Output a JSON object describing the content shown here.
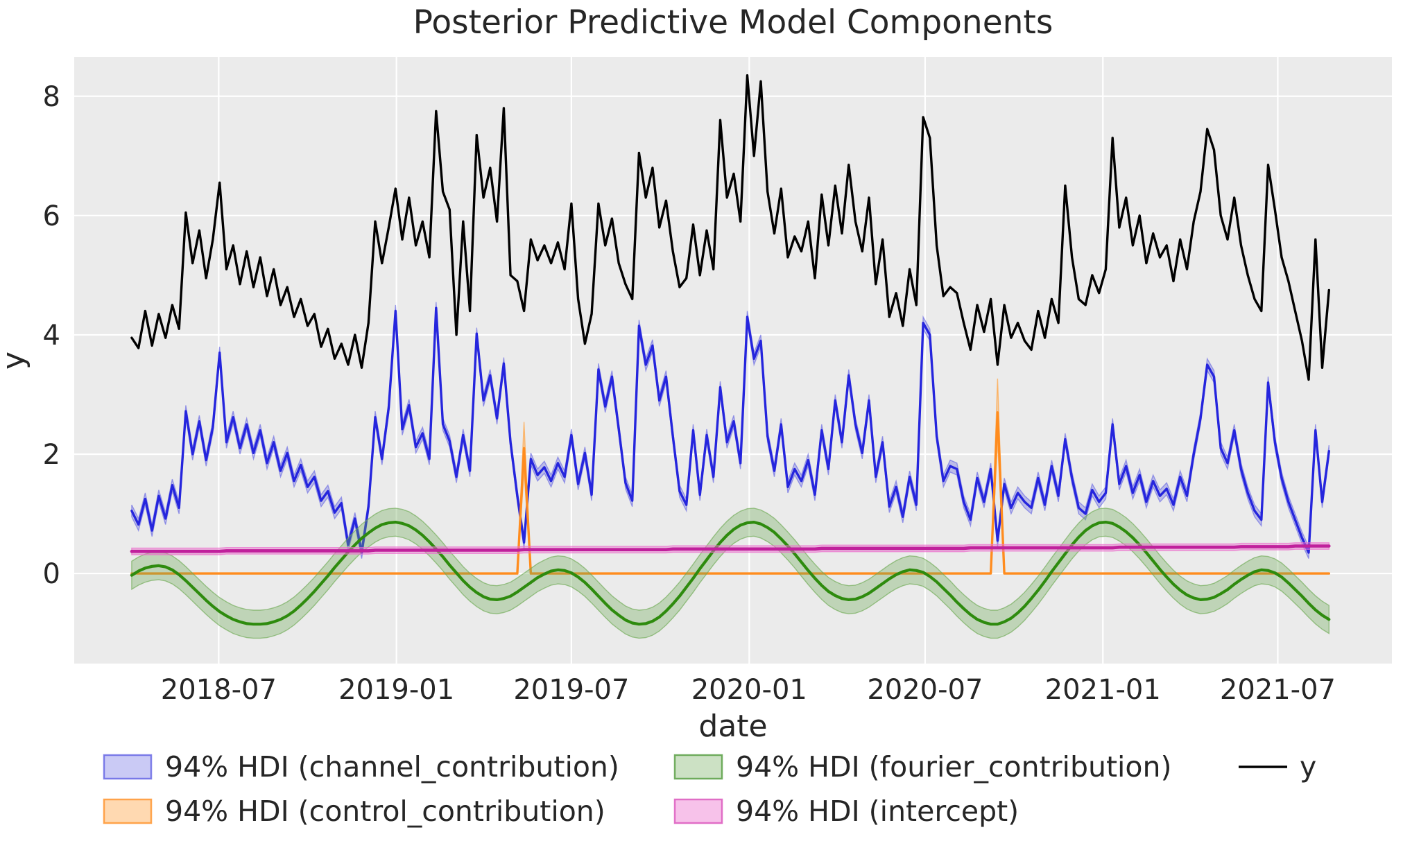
{
  "chart_data": {
    "type": "line",
    "title": "Posterior Predictive Model Components",
    "xlabel": "date",
    "ylabel": "y",
    "background": {
      "panel": "#ebebeb",
      "figure": "#ffffff",
      "grid": "#ffffff"
    },
    "x": {
      "start_date": "2018-04-02",
      "freq_days": 7,
      "n": 178
    },
    "xlim": [
      -8.5,
      186.3
    ],
    "ylim": [
      -1.51,
      8.66
    ],
    "xticks": [
      {
        "pos": 12.86,
        "label": "2018-07"
      },
      {
        "pos": 39.14,
        "label": "2019-01"
      },
      {
        "pos": 65.0,
        "label": "2019-07"
      },
      {
        "pos": 91.29,
        "label": "2020-01"
      },
      {
        "pos": 117.29,
        "label": "2020-07"
      },
      {
        "pos": 143.57,
        "label": "2021-01"
      },
      {
        "pos": 169.43,
        "label": "2021-07"
      }
    ],
    "yticks": [
      {
        "pos": 0,
        "label": "0"
      },
      {
        "pos": 2,
        "label": "2"
      },
      {
        "pos": 4,
        "label": "4"
      },
      {
        "pos": 6,
        "label": "6"
      },
      {
        "pos": 8,
        "label": "8"
      }
    ],
    "series": [
      {
        "name": "channel_contribution",
        "legend": "94% HDI (channel_contribution)",
        "color": "#2525dd",
        "band_fill": "rgba(90,90,225,0.32)",
        "band_edge": "rgba(90,90,225,0.55)",
        "line_width": 3.4,
        "band": {
          "mode": "halfwidth",
          "value": 0.1
        },
        "values": [
          1.05,
          0.82,
          1.25,
          0.72,
          1.3,
          0.92,
          1.48,
          1.1,
          2.72,
          2.0,
          2.55,
          1.9,
          2.45,
          3.7,
          2.2,
          2.62,
          2.1,
          2.5,
          2.02,
          2.4,
          1.85,
          2.2,
          1.72,
          2.02,
          1.55,
          1.82,
          1.45,
          1.62,
          1.22,
          1.38,
          1.02,
          1.18,
          0.48,
          0.92,
          0.35,
          1.12,
          2.62,
          1.92,
          2.78,
          4.4,
          2.42,
          2.82,
          2.12,
          2.35,
          1.92,
          4.45,
          2.5,
          2.22,
          1.62,
          2.32,
          1.72,
          4.02,
          2.9,
          3.32,
          2.6,
          3.52,
          2.2,
          1.3,
          0.52,
          1.92,
          1.65,
          1.78,
          1.55,
          1.85,
          1.62,
          2.32,
          1.5,
          2.02,
          1.32,
          3.42,
          2.8,
          3.3,
          2.42,
          1.52,
          1.22,
          4.15,
          3.5,
          3.82,
          2.9,
          3.3,
          2.3,
          1.38,
          1.15,
          2.4,
          1.32,
          2.32,
          1.62,
          3.12,
          2.2,
          2.55,
          1.85,
          4.3,
          3.6,
          3.9,
          2.3,
          1.72,
          2.5,
          1.45,
          1.75,
          1.55,
          1.9,
          1.32,
          2.4,
          1.75,
          2.9,
          2.2,
          3.32,
          2.5,
          2.02,
          2.9,
          1.62,
          2.2,
          1.12,
          1.45,
          0.95,
          1.62,
          1.15,
          4.2,
          4.0,
          2.3,
          1.55,
          1.8,
          1.75,
          1.2,
          0.9,
          1.6,
          1.2,
          1.75,
          0.55,
          1.5,
          1.1,
          1.35,
          1.2,
          1.1,
          1.6,
          1.15,
          1.8,
          1.3,
          2.25,
          1.6,
          1.1,
          1.0,
          1.4,
          1.2,
          1.35,
          2.5,
          1.5,
          1.8,
          1.35,
          1.65,
          1.2,
          1.55,
          1.3,
          1.42,
          1.15,
          1.62,
          1.3,
          2.0,
          2.6,
          3.5,
          3.3,
          2.1,
          1.85,
          2.4,
          1.75,
          1.35,
          1.05,
          0.9,
          3.2,
          2.2,
          1.6,
          1.2,
          0.9,
          0.6,
          0.35,
          2.4,
          1.2,
          2.05
        ]
      },
      {
        "name": "control_contribution",
        "legend": "94% HDI (control_contribution)",
        "color": "#ff8c1e",
        "band_fill": "rgba(255,165,70,0.42)",
        "band_edge": "rgba(255,165,70,0.7)",
        "line_width": 3.4,
        "band": {
          "mode": "scale",
          "lo": 0.82,
          "hi": 1.21
        },
        "base_value": 0,
        "spikes": {
          "58": 2.1,
          "128": 2.7
        }
      },
      {
        "name": "fourier_contribution",
        "legend": "94% HDI (fourier_contribution)",
        "color": "#2e8b0e",
        "band_fill": "rgba(110,170,85,0.35)",
        "band_edge": "rgba(110,170,85,0.65)",
        "line_width": 4.2,
        "band": {
          "mode": "halfwidth",
          "value": 0.235
        },
        "values": [
          -0.03,
          0.04,
          0.09,
          0.12,
          0.13,
          0.11,
          0.06,
          -0.02,
          -0.12,
          -0.23,
          -0.34,
          -0.45,
          -0.55,
          -0.64,
          -0.71,
          -0.77,
          -0.81,
          -0.84,
          -0.85,
          -0.85,
          -0.84,
          -0.81,
          -0.77,
          -0.71,
          -0.63,
          -0.53,
          -0.42,
          -0.3,
          -0.17,
          -0.04,
          0.1,
          0.23,
          0.36,
          0.48,
          0.59,
          0.68,
          0.76,
          0.82,
          0.85,
          0.86,
          0.84,
          0.8,
          0.73,
          0.64,
          0.53,
          0.41,
          0.28,
          0.14,
          0.01,
          -0.12,
          -0.23,
          -0.32,
          -0.39,
          -0.43,
          -0.44,
          -0.42,
          -0.38,
          -0.31,
          -0.23,
          -0.15,
          -0.07,
          -0.01,
          0.04,
          0.06,
          0.05,
          0.01,
          -0.06,
          -0.15,
          -0.26,
          -0.38,
          -0.5,
          -0.61,
          -0.7,
          -0.78,
          -0.83,
          -0.85,
          -0.84,
          -0.8,
          -0.73,
          -0.63,
          -0.51,
          -0.38,
          -0.23,
          -0.08,
          0.08,
          0.23,
          0.38,
          0.52,
          0.64,
          0.74,
          0.81,
          0.85,
          0.86,
          0.83,
          0.77,
          0.69,
          0.58,
          0.46,
          0.33,
          0.19,
          0.05,
          -0.08,
          -0.2,
          -0.3,
          -0.37,
          -0.42,
          -0.44,
          -0.43,
          -0.39,
          -0.33,
          -0.25,
          -0.17,
          -0.09,
          -0.02,
          0.03,
          0.06,
          0.05,
          0.02,
          -0.05,
          -0.14,
          -0.25,
          -0.36,
          -0.48,
          -0.59,
          -0.69,
          -0.77,
          -0.82,
          -0.85,
          -0.85,
          -0.81,
          -0.75,
          -0.66,
          -0.55,
          -0.42,
          -0.28,
          -0.13,
          0.03,
          0.18,
          0.33,
          0.48,
          0.61,
          0.72,
          0.8,
          0.85,
          0.86,
          0.84,
          0.78,
          0.7,
          0.6,
          0.48,
          0.35,
          0.21,
          0.07,
          -0.06,
          -0.18,
          -0.28,
          -0.36,
          -0.41,
          -0.44,
          -0.43,
          -0.4,
          -0.34,
          -0.27,
          -0.18,
          -0.1,
          -0.03,
          0.03,
          0.06,
          0.05,
          0.01,
          -0.06,
          -0.16,
          -0.27,
          -0.38,
          -0.5,
          -0.61,
          -0.7,
          -0.77
        ]
      },
      {
        "name": "intercept",
        "legend": "94% HDI (intercept)",
        "color": "#c0209c",
        "band_fill": "rgba(235,110,205,0.42)",
        "band_edge": "rgba(235,110,205,0.7)",
        "line_width": 4.6,
        "band": {
          "mode": "halfwidth",
          "value": 0.055
        },
        "values": [
          0.37,
          0.37,
          0.37,
          0.37,
          0.37,
          0.37,
          0.37,
          0.37,
          0.37,
          0.37,
          0.37,
          0.37,
          0.37,
          0.37,
          0.38,
          0.38,
          0.38,
          0.38,
          0.38,
          0.38,
          0.38,
          0.38,
          0.38,
          0.38,
          0.38,
          0.38,
          0.38,
          0.38,
          0.38,
          0.38,
          0.38,
          0.38,
          0.38,
          0.38,
          0.38,
          0.38,
          0.39,
          0.39,
          0.39,
          0.39,
          0.39,
          0.39,
          0.39,
          0.39,
          0.39,
          0.39,
          0.39,
          0.39,
          0.39,
          0.39,
          0.39,
          0.39,
          0.39,
          0.39,
          0.39,
          0.39,
          0.39,
          0.39,
          0.4,
          0.4,
          0.4,
          0.4,
          0.4,
          0.4,
          0.4,
          0.4,
          0.4,
          0.4,
          0.4,
          0.4,
          0.4,
          0.4,
          0.4,
          0.4,
          0.4,
          0.4,
          0.4,
          0.4,
          0.4,
          0.4,
          0.41,
          0.41,
          0.41,
          0.41,
          0.41,
          0.41,
          0.41,
          0.41,
          0.41,
          0.41,
          0.41,
          0.41,
          0.41,
          0.41,
          0.41,
          0.41,
          0.41,
          0.41,
          0.41,
          0.41,
          0.41,
          0.41,
          0.42,
          0.42,
          0.42,
          0.42,
          0.42,
          0.42,
          0.42,
          0.42,
          0.42,
          0.42,
          0.42,
          0.42,
          0.42,
          0.42,
          0.42,
          0.42,
          0.42,
          0.42,
          0.42,
          0.42,
          0.42,
          0.42,
          0.43,
          0.43,
          0.43,
          0.43,
          0.43,
          0.43,
          0.43,
          0.43,
          0.43,
          0.43,
          0.43,
          0.43,
          0.43,
          0.43,
          0.43,
          0.43,
          0.43,
          0.43,
          0.43,
          0.43,
          0.43,
          0.43,
          0.44,
          0.44,
          0.44,
          0.44,
          0.44,
          0.44,
          0.44,
          0.44,
          0.44,
          0.44,
          0.44,
          0.44,
          0.44,
          0.44,
          0.44,
          0.44,
          0.44,
          0.44,
          0.45,
          0.45,
          0.45,
          0.45,
          0.45,
          0.45,
          0.45,
          0.45,
          0.46,
          0.46,
          0.46,
          0.46,
          0.46,
          0.46
        ]
      },
      {
        "name": "y",
        "legend": "y",
        "color": "#000000",
        "line_width": 3.4,
        "band": null,
        "values": [
          3.95,
          3.78,
          4.4,
          3.82,
          4.35,
          3.95,
          4.5,
          4.1,
          6.05,
          5.2,
          5.75,
          4.95,
          5.6,
          6.55,
          5.1,
          5.5,
          4.85,
          5.4,
          4.8,
          5.3,
          4.65,
          5.1,
          4.5,
          4.8,
          4.3,
          4.6,
          4.15,
          4.35,
          3.8,
          4.1,
          3.6,
          3.85,
          3.5,
          4.0,
          3.45,
          4.2,
          5.9,
          5.2,
          5.8,
          6.45,
          5.6,
          6.3,
          5.5,
          5.9,
          5.3,
          7.75,
          6.4,
          6.1,
          4.0,
          5.9,
          4.4,
          7.35,
          6.3,
          6.8,
          5.9,
          7.8,
          5.0,
          4.9,
          4.4,
          5.6,
          5.25,
          5.5,
          5.2,
          5.55,
          5.1,
          6.2,
          4.6,
          3.85,
          4.35,
          6.2,
          5.5,
          5.95,
          5.2,
          4.85,
          4.6,
          7.05,
          6.3,
          6.8,
          5.8,
          6.25,
          5.4,
          4.8,
          4.95,
          5.85,
          5.0,
          5.75,
          5.1,
          7.6,
          6.3,
          6.7,
          5.9,
          8.35,
          7.0,
          8.25,
          6.4,
          5.7,
          6.45,
          5.3,
          5.65,
          5.4,
          5.9,
          4.95,
          6.35,
          5.5,
          6.5,
          5.7,
          6.85,
          5.9,
          5.4,
          6.3,
          4.85,
          5.6,
          4.3,
          4.7,
          4.15,
          5.1,
          4.5,
          7.65,
          7.3,
          5.5,
          4.65,
          4.8,
          4.7,
          4.2,
          3.75,
          4.5,
          4.05,
          4.6,
          3.5,
          4.5,
          3.95,
          4.2,
          3.9,
          3.75,
          4.4,
          3.95,
          4.6,
          4.2,
          6.5,
          5.3,
          4.6,
          4.5,
          5.0,
          4.7,
          5.1,
          7.3,
          5.8,
          6.3,
          5.5,
          6.0,
          5.2,
          5.7,
          5.3,
          5.5,
          4.9,
          5.6,
          5.1,
          5.9,
          6.4,
          7.45,
          7.1,
          6.0,
          5.6,
          6.3,
          5.5,
          5.0,
          4.6,
          4.4,
          6.85,
          6.1,
          5.3,
          4.9,
          4.4,
          3.9,
          3.25,
          5.6,
          3.45,
          4.75
        ]
      }
    ],
    "legend": {
      "columns": [
        [
          {
            "type": "patch",
            "fill": "rgba(90,90,225,0.32)",
            "border": "rgba(90,90,225,0.75)",
            "label": "94% HDI (channel_contribution)",
            "name": "channel"
          },
          {
            "type": "patch",
            "fill": "rgba(255,165,70,0.42)",
            "border": "rgba(255,150,50,0.85)",
            "label": "94% HDI (control_contribution)",
            "name": "control"
          }
        ],
        [
          {
            "type": "patch",
            "fill": "rgba(110,170,85,0.35)",
            "border": "rgba(90,160,70,0.85)",
            "label": "94% HDI (fourier_contribution)",
            "name": "fourier"
          },
          {
            "type": "patch",
            "fill": "rgba(235,110,205,0.42)",
            "border": "rgba(220,90,190,0.85)",
            "label": "94% HDI (intercept)",
            "name": "intercept"
          }
        ],
        [
          {
            "type": "line",
            "color": "#000000",
            "label": "y",
            "name": "y"
          }
        ]
      ]
    }
  }
}
